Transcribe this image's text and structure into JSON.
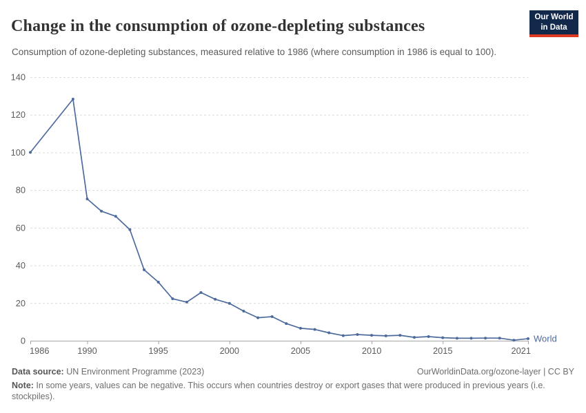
{
  "header": {
    "title": "Change in the consumption of ozone-depleting substances",
    "subtitle": "Consumption of ozone-depleting substances, measured relative to 1986 (where consumption in 1986 is equal to 100).",
    "logo": {
      "line1": "Our World",
      "line2": "in Data",
      "bg_color": "#12294B",
      "accent_color": "#DC3A23"
    }
  },
  "chart_data": {
    "type": "line",
    "title": "Change in the consumption of ozone-depleting substances",
    "series": [
      {
        "name": "World",
        "x": [
          1986,
          1989,
          1990,
          1991,
          1992,
          1993,
          1994,
          1995,
          1996,
          1997,
          1998,
          1999,
          2000,
          2001,
          2002,
          2003,
          2004,
          2005,
          2006,
          2007,
          2008,
          2009,
          2010,
          2011,
          2012,
          2013,
          2014,
          2015,
          2016,
          2017,
          2018,
          2019,
          2020,
          2021
        ],
        "values": [
          100,
          128.3,
          75.3,
          68.8,
          66.1,
          59.0,
          37.7,
          31.1,
          22.3,
          20.5,
          25.6,
          22.0,
          19.8,
          15.7,
          12.2,
          12.8,
          9.1,
          6.6,
          6.0,
          4.2,
          2.7,
          3.3,
          2.9,
          2.6,
          2.9,
          1.8,
          2.2,
          1.6,
          1.3,
          1.3,
          1.4,
          1.4,
          0.3,
          1.1
        ]
      }
    ],
    "xlim": [
      1986,
      2021
    ],
    "ylim": [
      0,
      140
    ],
    "xticks": [
      1986,
      1990,
      1995,
      2000,
      2005,
      2010,
      2015,
      2021
    ],
    "xtick_labels": [
      "1986",
      "1990",
      "1995",
      "2000",
      "2005",
      "2010",
      "2015",
      "2021"
    ],
    "yticks": [
      0,
      20,
      40,
      60,
      80,
      100,
      120,
      140
    ],
    "grid": "horizontal-dashed",
    "legend_position": "end-of-line",
    "end_label": "World",
    "line_color": "#4C6A9C",
    "grid_color": "#dcdcdc",
    "axis_color": "#a5a5a5",
    "tick_text_color": "#5b5b5b"
  },
  "footer": {
    "data_source_label": "Data source:",
    "data_source_text": " UN Environment Programme (2023)",
    "link_text": "OurWorldinData.org/ozone-layer",
    "separator": " | ",
    "license_text": "CC BY",
    "note_label": "Note:",
    "note_text": " In some years, values can be negative. This occurs when countries destroy or export gases that were produced in previous years (i.e. stockpiles)."
  }
}
